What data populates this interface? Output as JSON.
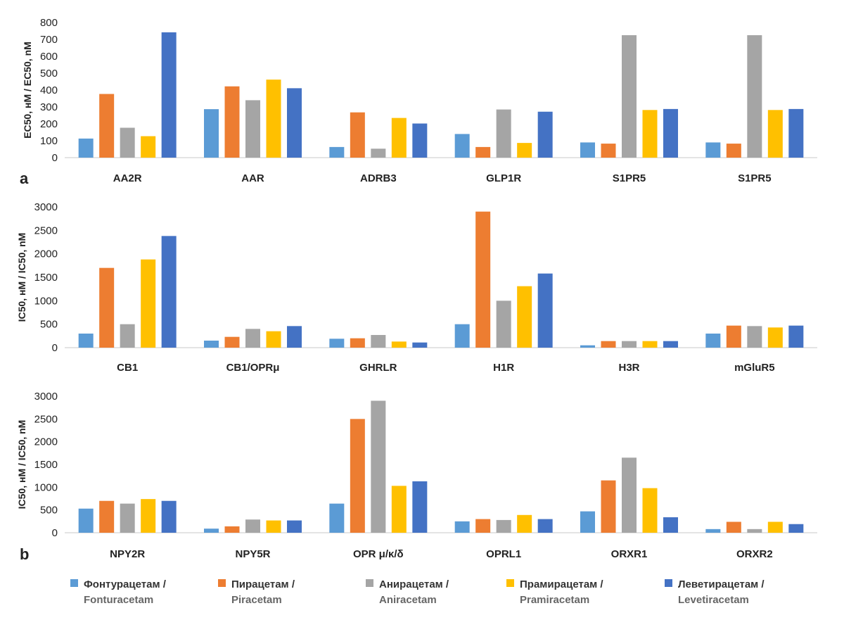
{
  "chart_data": [
    {
      "type": "bar",
      "panel_label": "a",
      "ylabel": "EC50, нМ / EC50, nM",
      "ylim": [
        0,
        800
      ],
      "yticks": [
        0,
        100,
        200,
        300,
        400,
        500,
        600,
        700,
        800
      ],
      "categories": [
        "AA2R",
        "AAR",
        "ADRB3",
        "GLP1R",
        "S1PR5",
        "S1PR5"
      ],
      "series": [
        {
          "name": "Фонтурацетам / Fonturacetam",
          "values": [
            113,
            287,
            63,
            140,
            90,
            90
          ]
        },
        {
          "name": "Пирацетам / Piracetam",
          "values": [
            377,
            422,
            268,
            63,
            83,
            83
          ]
        },
        {
          "name": "Анирацетам / Aniracetam",
          "values": [
            177,
            340,
            53,
            285,
            725,
            725
          ]
        },
        {
          "name": "Прамирацетам / Pramiracetam",
          "values": [
            127,
            462,
            235,
            87,
            282,
            282
          ]
        },
        {
          "name": "Леветирацетам / Levetiracetam",
          "values": [
            742,
            411,
            202,
            272,
            288,
            288
          ]
        }
      ]
    },
    {
      "type": "bar",
      "panel_label": "",
      "ylabel": "IC50, нМ / IC50, nM",
      "ylim": [
        0,
        3000
      ],
      "yticks": [
        0,
        500,
        1000,
        1500,
        2000,
        2500,
        3000
      ],
      "categories": [
        "CB1",
        "CB1/OPRμ",
        "GHRLR",
        "H1R",
        "H3R",
        "mGluR5"
      ],
      "series": [
        {
          "name": "Фонтурацетам / Fonturacetam",
          "values": [
            300,
            150,
            190,
            500,
            50,
            300
          ]
        },
        {
          "name": "Пирацетам / Piracetam",
          "values": [
            1700,
            230,
            200,
            2900,
            140,
            470
          ]
        },
        {
          "name": "Анирацетам / Aniracetam",
          "values": [
            500,
            400,
            270,
            1000,
            140,
            460
          ]
        },
        {
          "name": "Прамирацетам / Pramiracetam",
          "values": [
            1880,
            350,
            130,
            1310,
            140,
            430
          ]
        },
        {
          "name": "Леветирацетам / Levetiracetam",
          "values": [
            2380,
            460,
            110,
            1580,
            140,
            470
          ]
        }
      ]
    },
    {
      "type": "bar",
      "panel_label": "b",
      "ylabel": "IC50, нМ / IC50, nM",
      "ylim": [
        0,
        3000
      ],
      "yticks": [
        0,
        500,
        1000,
        1500,
        2000,
        2500,
        3000
      ],
      "categories": [
        "NPY2R",
        "NPY5R",
        "OPR μ/κ/δ",
        "OPRL1",
        "ORXR1",
        "ORXR2"
      ],
      "series": [
        {
          "name": "Фонтурацетам / Fonturacetam",
          "values": [
            530,
            90,
            640,
            250,
            470,
            80
          ]
        },
        {
          "name": "Пирацетам / Piracetam",
          "values": [
            700,
            140,
            2500,
            300,
            1150,
            240
          ]
        },
        {
          "name": "Анирацетам / Aniracetam",
          "values": [
            640,
            290,
            2900,
            280,
            1650,
            80
          ]
        },
        {
          "name": "Прамирацетам / Pramiracetam",
          "values": [
            740,
            270,
            1030,
            390,
            980,
            240
          ]
        },
        {
          "name": "Леветирацетам / Levetiracetam",
          "values": [
            700,
            270,
            1130,
            300,
            340,
            190
          ]
        }
      ]
    }
  ],
  "legend": [
    {
      "ru": "Фонтурацетам /",
      "en": "Fonturacetam"
    },
    {
      "ru": "Пирацетам /",
      "en": "Piracetam"
    },
    {
      "ru": "Анирацетам /",
      "en": "Aniracetam"
    },
    {
      "ru": "Прамирацетам /",
      "en": "Pramiracetam"
    },
    {
      "ru": "Леветирацетам /",
      "en": "Levetiracetam"
    }
  ],
  "colors": [
    "#5b9bd5",
    "#ed7d31",
    "#a5a5a5",
    "#ffc000",
    "#4472c4"
  ]
}
